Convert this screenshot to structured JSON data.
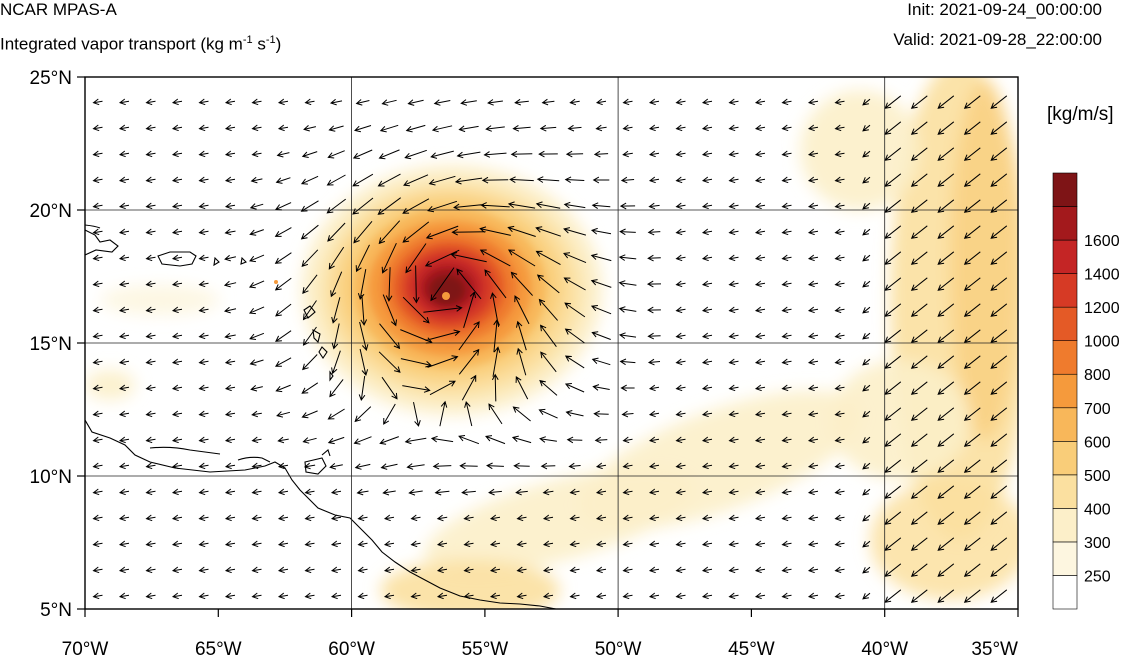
{
  "header": {
    "model": "NCAR MPAS-A",
    "field_prefix": "Integrated vapor transport (kg m",
    "field_exp1": "-1",
    "field_mid": " s",
    "field_exp2": "-1",
    "field_suffix": ")",
    "init_label": "Init: 2021-09-24_00:00:00",
    "valid_label": "Valid: 2021-09-28_22:00:00"
  },
  "map": {
    "lon_range": [
      -70,
      -35
    ],
    "lat_range": [
      5,
      25
    ],
    "lon_ticks": [
      {
        "value": -70,
        "label": "70°W"
      },
      {
        "value": -65,
        "label": "65°W"
      },
      {
        "value": -60,
        "label": "60°W"
      },
      {
        "value": -55,
        "label": "55°W"
      },
      {
        "value": -50,
        "label": "50°W"
      },
      {
        "value": -45,
        "label": "45°W"
      },
      {
        "value": -40,
        "label": "40°W"
      },
      {
        "value": -35,
        "label": "35°W"
      }
    ],
    "lat_ticks": [
      {
        "value": 25,
        "label": "25°N"
      },
      {
        "value": 20,
        "label": "20°N"
      },
      {
        "value": 15,
        "label": "15°N"
      },
      {
        "value": 10,
        "label": "10°N"
      },
      {
        "value": 5,
        "label": "5°N"
      }
    ],
    "gridlines": true,
    "storm_center": {
      "lon": -56.3,
      "lat": 16.8
    },
    "colors": {
      "background": "#ffffff",
      "coastline": "#000000",
      "vectors": "#000000"
    }
  },
  "colorbar": {
    "units": "[kg/m/s]",
    "levels": [
      {
        "value": "250",
        "color": "#fdf6e0"
      },
      {
        "value": "300",
        "color": "#fcefc9"
      },
      {
        "value": "400",
        "color": "#fbe0a0"
      },
      {
        "value": "500",
        "color": "#f9cd79"
      },
      {
        "value": "600",
        "color": "#f8b75a"
      },
      {
        "value": "700",
        "color": "#f59a3c"
      },
      {
        "value": "800",
        "color": "#ef7b2d"
      },
      {
        "value": "1000",
        "color": "#e45a26"
      },
      {
        "value": "1200",
        "color": "#d63a25"
      },
      {
        "value": "1400",
        "color": "#c42525"
      },
      {
        "value": "1600",
        "color": "#a3191c"
      },
      {
        "value": "",
        "color": "#7e1416"
      }
    ],
    "below_color": "#ffffff"
  }
}
